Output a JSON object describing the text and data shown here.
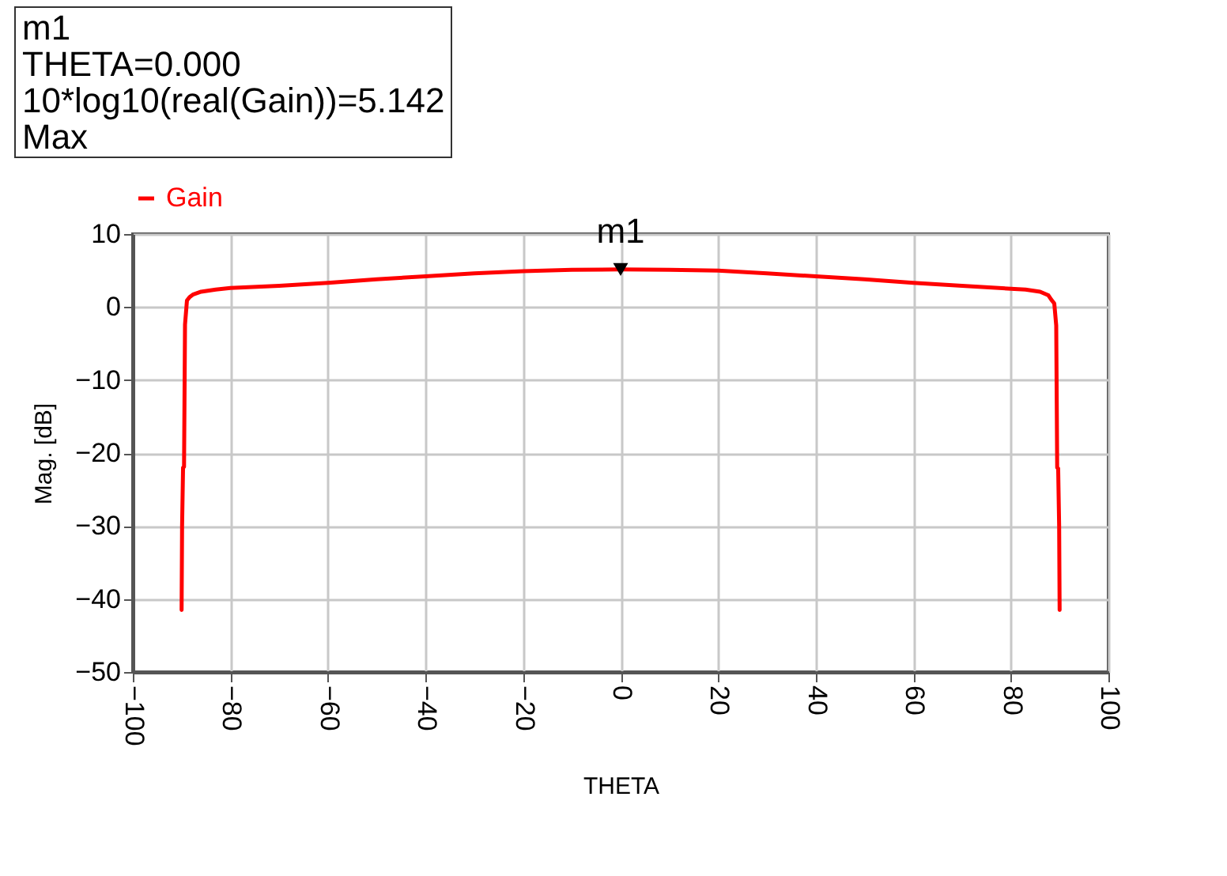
{
  "chart_data": {
    "type": "line",
    "xlabel": "THETA",
    "ylabel": "Mag. [dB]",
    "annotations": [
      "m1",
      "THETA=0.000",
      "10*log10(real(Gain))=5.142",
      "Max",
      {
        "text": "m1",
        "x": 0,
        "y": 5.142
      }
    ],
    "x": [
      -90,
      -89.9,
      -89.7,
      -89.5,
      -89.3,
      -88.9,
      -88.3,
      -87.7,
      -86,
      -83,
      -80,
      -70,
      -60,
      -50,
      -40,
      -30,
      -20,
      -10,
      0,
      10,
      20,
      30,
      40,
      50,
      60,
      70,
      80,
      83,
      86,
      87.7,
      88.3,
      88.9,
      89.3,
      89.5,
      89.7,
      89.9,
      90
    ],
    "series": [
      {
        "name": "Gain",
        "color": "#ff0000",
        "values": [
          -41.5,
          -30,
          -22,
          -21.9,
          -2.4,
          0.9,
          1.4,
          1.7,
          2.1,
          2.4,
          2.6,
          2.9,
          3.3,
          3.8,
          4.2,
          4.6,
          4.9,
          5.1,
          5.142,
          5.1,
          5.0,
          4.6,
          4.2,
          3.8,
          3.3,
          2.9,
          2.5,
          2.4,
          2.1,
          1.6,
          1.0,
          0.5,
          -2.5,
          -22,
          -22.1,
          -30,
          -41.5
        ]
      },
      {
        "type": "scatter",
        "color": "#000000",
        "marker": "triangle",
        "x": [
          0
        ],
        "values": [
          5.142
        ]
      }
    ],
    "xlim": [
      -100,
      100
    ],
    "xticks": [
      -100,
      -80,
      -60,
      -40,
      -20,
      0,
      20,
      40,
      60,
      80,
      100
    ],
    "ylim": [
      -50,
      10
    ],
    "yticks": [
      -50,
      -40,
      -30,
      -20,
      -10,
      0,
      10
    ],
    "grid": true,
    "legend": "top left"
  }
}
